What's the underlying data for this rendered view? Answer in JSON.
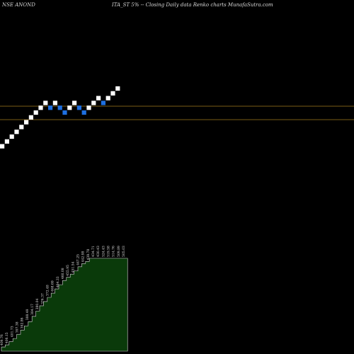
{
  "header": {
    "ticker": "NSE ANOND",
    "info": "ITA_ST 5% -- Closing Daily data  Renko  charts MunafaSutra.com"
  },
  "colors": {
    "background": "#000000",
    "brick_up": "#ffffff",
    "brick_down": "#1e6fe0",
    "price_line": "#a37a1e",
    "volume_fill": "#0a3a0a",
    "volume_edge": "#d9d9d9"
  },
  "chart_data": {
    "type": "renko",
    "title": "",
    "bricks": [
      {
        "dir": "up"
      },
      {
        "dir": "up"
      },
      {
        "dir": "up"
      },
      {
        "dir": "up"
      },
      {
        "dir": "up"
      },
      {
        "dir": "up"
      },
      {
        "dir": "up"
      },
      {
        "dir": "up"
      },
      {
        "dir": "up"
      },
      {
        "dir": "up"
      },
      {
        "dir": "down"
      },
      {
        "dir": "up"
      },
      {
        "dir": "down"
      },
      {
        "dir": "down"
      },
      {
        "dir": "up"
      },
      {
        "dir": "up"
      },
      {
        "dir": "down"
      },
      {
        "dir": "down"
      },
      {
        "dir": "up"
      },
      {
        "dir": "up"
      },
      {
        "dir": "up"
      },
      {
        "dir": "down"
      },
      {
        "dir": "up"
      },
      {
        "dir": "up"
      },
      {
        "dir": "up"
      }
    ],
    "reference_levels": [
      "upper",
      "lower"
    ],
    "price_labels": [
      "409.76",
      "406.15",
      "401.73",
      "397.38",
      "392.86",
      "388.49",
      "384.17",
      "380.04",
      "376.37",
      "372.48",
      "468.69",
      "464.33",
      "460.08",
      "455.95",
      "451.54",
      "447.25",
      "442.98",
      "438.78",
      "434.71",
      "430.43",
      "524.43",
      "519.58",
      "514.76",
      "509.89",
      "505.03"
    ],
    "volume": [
      4,
      6,
      9,
      12,
      16,
      20,
      24,
      28,
      33,
      38,
      43,
      47,
      51,
      55,
      59,
      63,
      67,
      70,
      73,
      76,
      80,
      83,
      85,
      88,
      88,
      88,
      88,
      88,
      88,
      88,
      88,
      88,
      88
    ]
  }
}
